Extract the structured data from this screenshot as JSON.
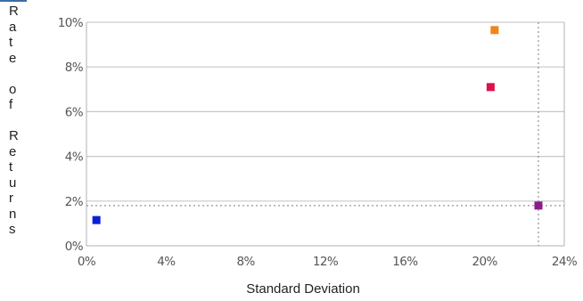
{
  "chart_data": {
    "type": "scatter",
    "title": "",
    "xlabel": "Standard Deviation",
    "ylabel": "Rate of Returns",
    "xlim": [
      0,
      24
    ],
    "ylim": [
      0,
      10
    ],
    "x_ticks": [
      "0%",
      "4%",
      "8%",
      "12%",
      "16%",
      "20%",
      "24%"
    ],
    "y_ticks": [
      "0%",
      "2%",
      "4%",
      "6%",
      "8%",
      "10%"
    ],
    "grid": "horizontal",
    "legend": "none",
    "points": [
      {
        "x": 0.5,
        "y": 1.15,
        "color": "#0a1fd8"
      },
      {
        "x": 20.3,
        "y": 7.1,
        "color": "#e0104c"
      },
      {
        "x": 20.5,
        "y": 9.65,
        "color": "#f0851a"
      },
      {
        "x": 22.7,
        "y": 1.8,
        "color": "#8c1a8c"
      }
    ],
    "reference_lines": {
      "x": 22.7,
      "y": 1.8,
      "color": "#7a7a7a"
    }
  }
}
